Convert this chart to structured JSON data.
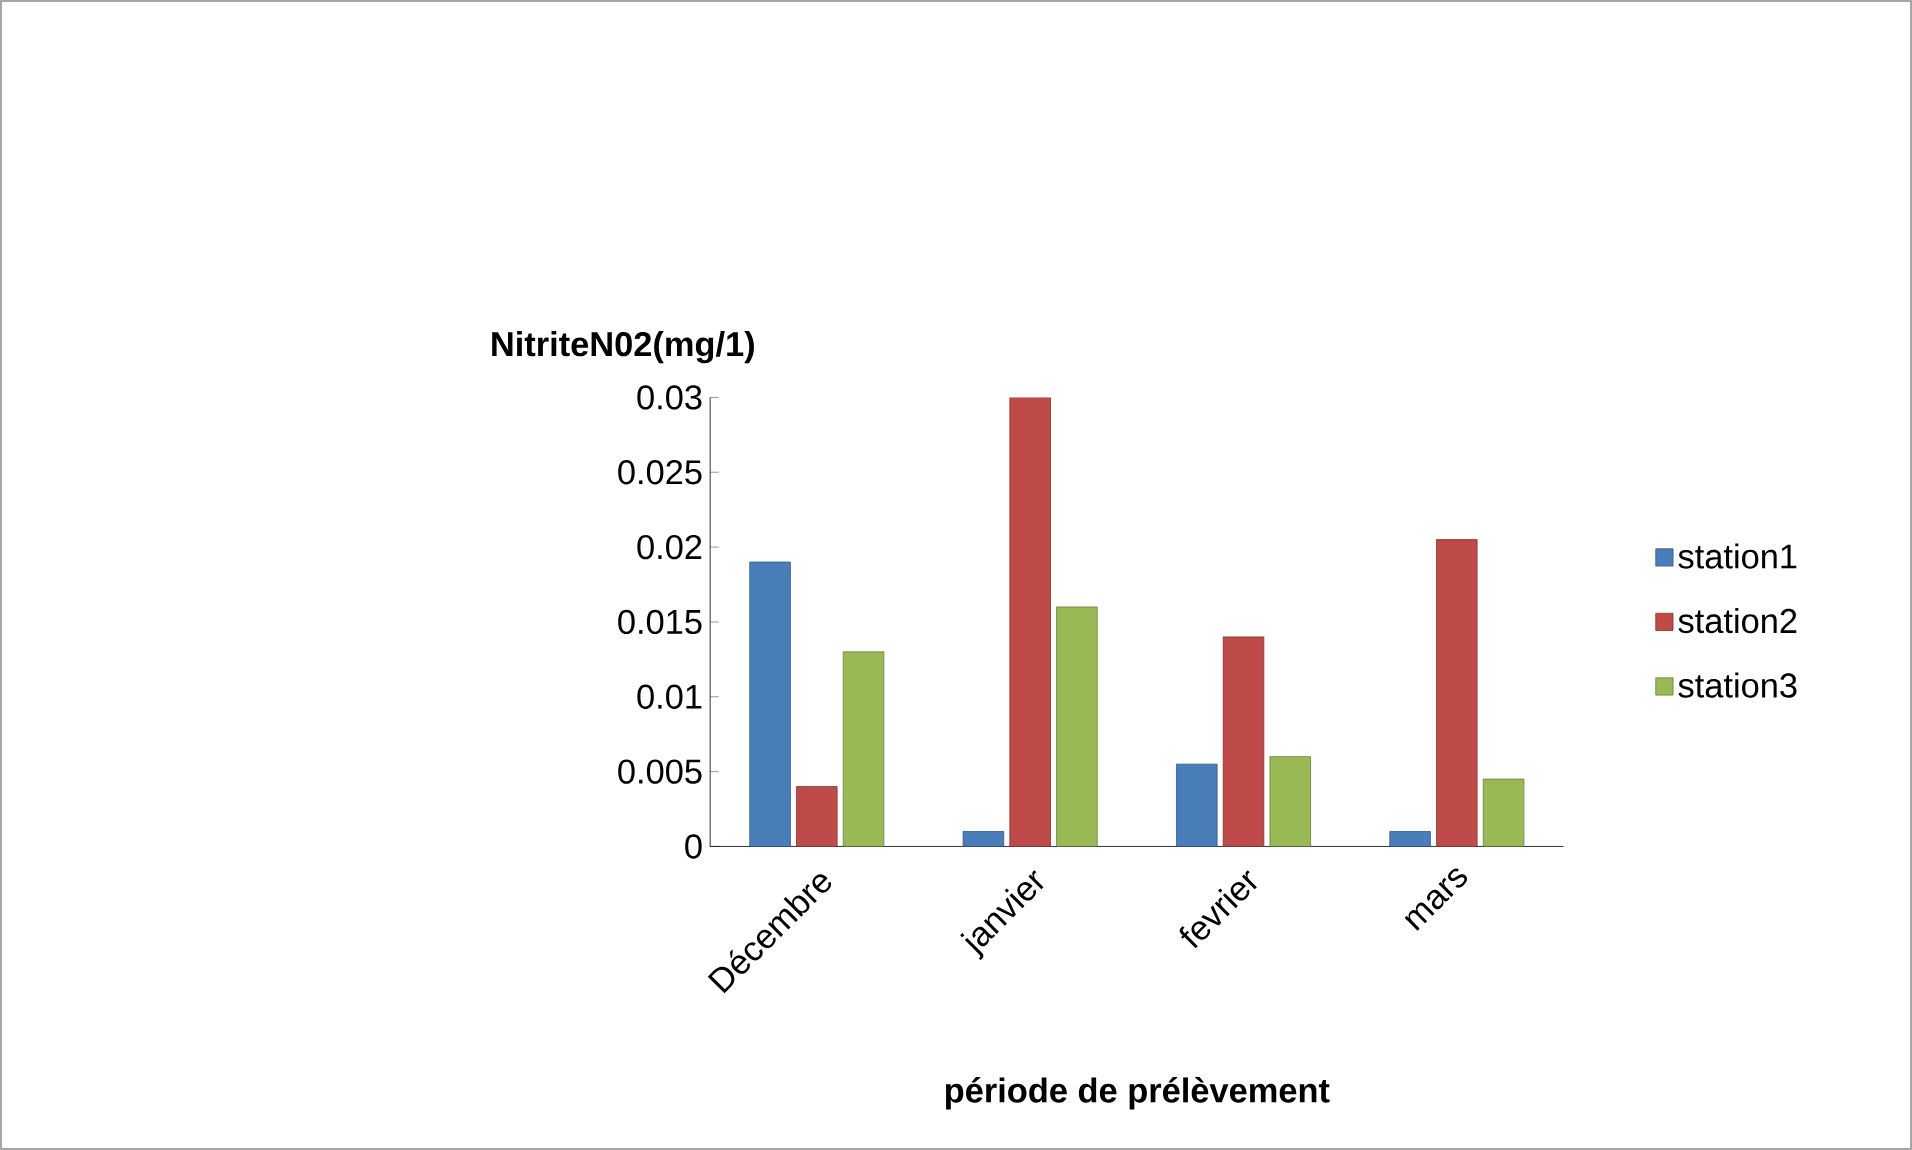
{
  "chart_data": {
    "type": "bar",
    "xlabel": "période de prélèvement",
    "ylabel": "NitriteN02(mg/1)",
    "categories": [
      "Décembre",
      "janvier",
      "fevrier",
      "mars"
    ],
    "series": [
      {
        "name": "station1",
        "color": "#4a7ebb",
        "values": [
          0.019,
          0.001,
          0.0055,
          0.001
        ]
      },
      {
        "name": "station2",
        "color": "#be4b48",
        "values": [
          0.004,
          0.03,
          0.014,
          0.0205
        ]
      },
      {
        "name": "station3",
        "color": "#98b954",
        "values": [
          0.013,
          0.016,
          0.006,
          0.0045
        ]
      }
    ],
    "ylim": [
      0,
      0.03
    ],
    "yticks": [
      0,
      0.005,
      0.01,
      0.015,
      0.02,
      0.025,
      0.03
    ],
    "grid": false,
    "legend": "right"
  }
}
